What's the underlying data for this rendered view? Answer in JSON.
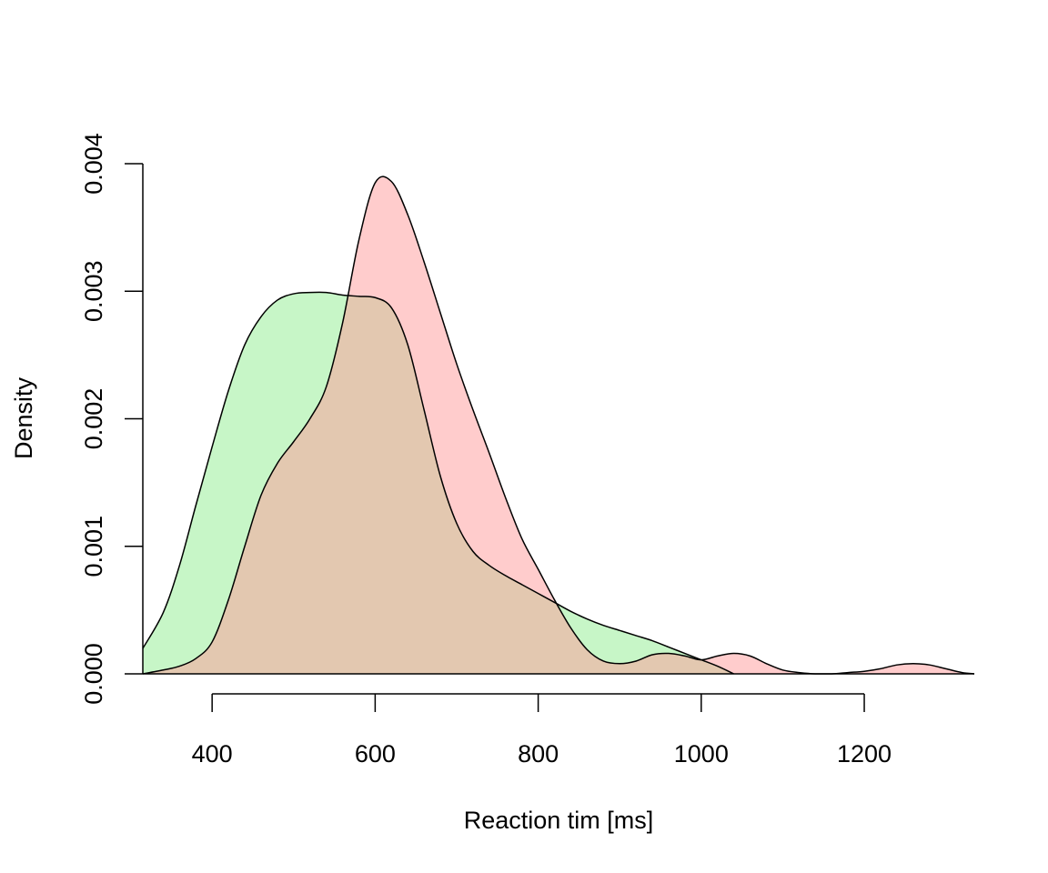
{
  "chart_data": {
    "type": "area",
    "title": "",
    "xlabel": "Reaction tim [ms]",
    "ylabel": "Density",
    "xlim": [
      315,
      1335
    ],
    "ylim": [
      0,
      0.004
    ],
    "x_ticks": [
      400,
      600,
      800,
      1000,
      1200
    ],
    "x_tick_labels": [
      "400",
      "600",
      "800",
      "1000",
      "1200"
    ],
    "y_ticks": [
      0,
      0.001,
      0.002,
      0.003,
      0.004
    ],
    "y_tick_labels": [
      "0.000",
      "0.001",
      "0.002",
      "0.003",
      "0.004"
    ],
    "grid": false,
    "legend": "none",
    "series": [
      {
        "color": "#90ee90",
        "x": [
          315,
          340,
          360,
          380,
          400,
          420,
          440,
          460,
          480,
          500,
          520,
          540,
          560,
          580,
          600,
          620,
          640,
          660,
          680,
          700,
          720,
          740,
          760,
          780,
          800,
          820,
          840,
          860,
          880,
          900,
          920,
          940,
          960,
          980,
          1000,
          1020,
          1040
        ],
        "values": [
          0.0002,
          0.00048,
          0.00085,
          0.00132,
          0.00178,
          0.00222,
          0.00258,
          0.0028,
          0.00293,
          0.00298,
          0.00299,
          0.00299,
          0.00297,
          0.00296,
          0.00295,
          0.00287,
          0.00258,
          0.00207,
          0.00155,
          0.00118,
          0.00096,
          0.00085,
          0.00077,
          0.0007,
          0.00063,
          0.00056,
          0.00049,
          0.00043,
          0.00038,
          0.00034,
          0.0003,
          0.00026,
          0.00021,
          0.00016,
          0.00011,
          6e-05,
          0.0
        ]
      },
      {
        "color": "#ff9999",
        "x": [
          315,
          340,
          360,
          380,
          400,
          420,
          440,
          460,
          480,
          500,
          520,
          540,
          560,
          580,
          600,
          620,
          640,
          660,
          680,
          700,
          720,
          740,
          760,
          780,
          800,
          820,
          840,
          860,
          880,
          900,
          920,
          940,
          960,
          980,
          1000,
          1020,
          1040,
          1060,
          1080,
          1100,
          1120,
          1140,
          1160,
          1180,
          1200,
          1220,
          1240,
          1260,
          1280,
          1300,
          1320,
          1335
        ],
        "values": [
          0.0,
          3e-05,
          6e-05,
          0.00012,
          0.00025,
          0.00058,
          0.001,
          0.0014,
          0.00165,
          0.00182,
          0.002,
          0.00225,
          0.00275,
          0.0034,
          0.00385,
          0.00386,
          0.0036,
          0.00323,
          0.00283,
          0.00243,
          0.00207,
          0.00173,
          0.00138,
          0.00106,
          0.00082,
          0.00058,
          0.00036,
          0.00019,
          0.0001,
          8e-05,
          0.0001,
          0.00015,
          0.00016,
          0.00014,
          0.00011,
          0.00014,
          0.00016,
          0.00014,
          8e-05,
          3e-05,
          1e-05,
          0.0,
          0.0,
          1e-05,
          2e-05,
          4e-05,
          7e-05,
          8e-05,
          7e-05,
          4e-05,
          1e-05,
          0.0
        ]
      }
    ]
  }
}
